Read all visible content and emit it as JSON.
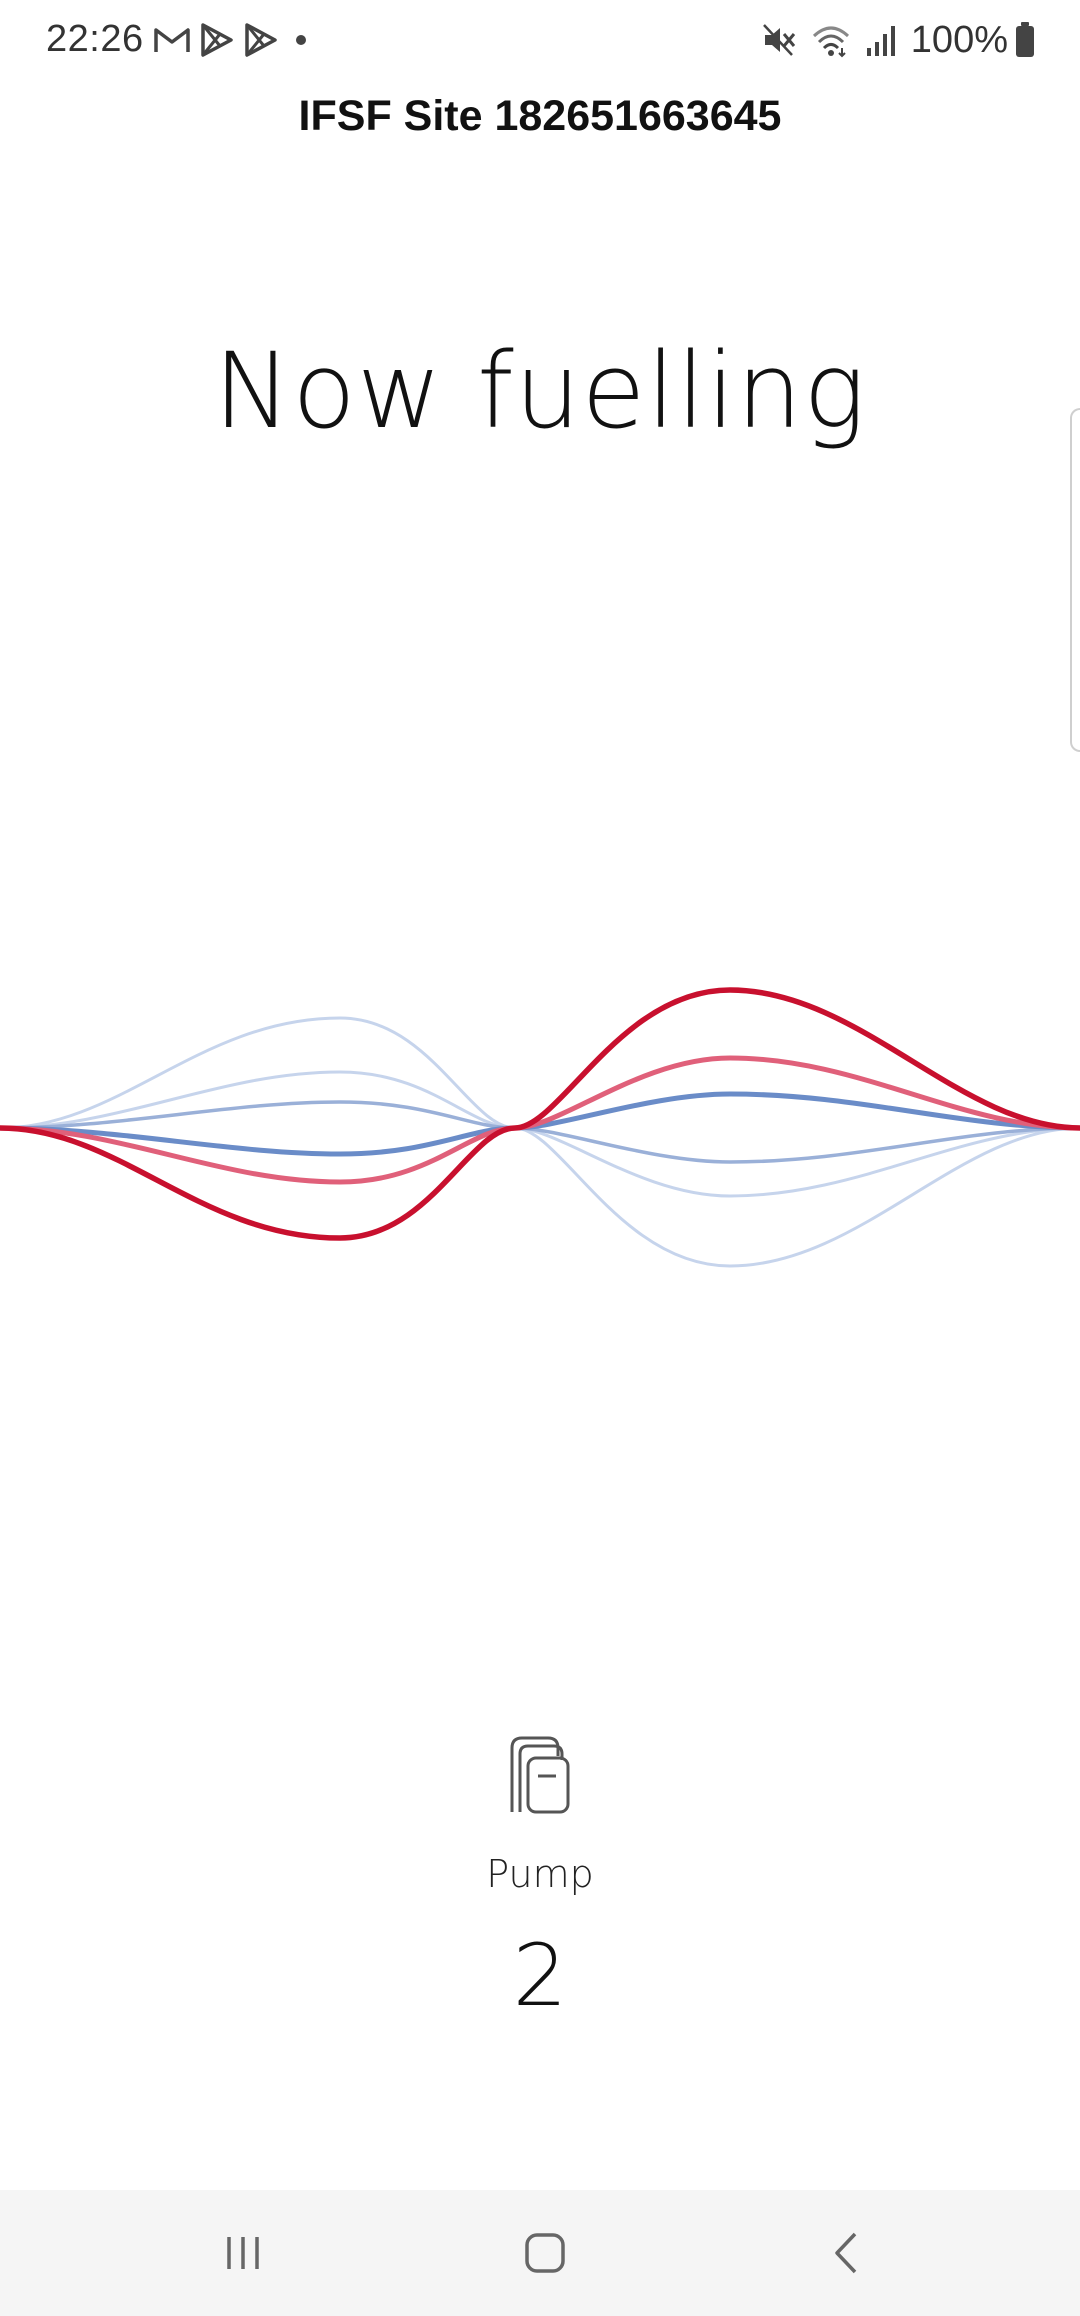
{
  "status_bar": {
    "time": "22:26",
    "left_icons": [
      "gmail-icon",
      "play-store-icon",
      "play-store-icon",
      "notification-dot-icon"
    ],
    "right_icons": [
      "mute-icon",
      "wifi-icon",
      "signal-icon",
      "battery-icon"
    ],
    "battery_percent": "100%"
  },
  "header": {
    "site_title": "IFSF Site 182651663645"
  },
  "main": {
    "headline": "Now fuelling"
  },
  "pump": {
    "icon": "fuel-pump-icon",
    "label": "Pump",
    "number": "2"
  },
  "nav_bar": {
    "buttons": [
      "recent-apps",
      "home",
      "back"
    ]
  },
  "colors": {
    "wave_red": "#c8102e",
    "wave_red_mid": "#e0607a",
    "wave_blue": "#6a8cc8",
    "wave_blue_mid": "#9ab0d8",
    "wave_blue_light": "#c6d4ec"
  }
}
